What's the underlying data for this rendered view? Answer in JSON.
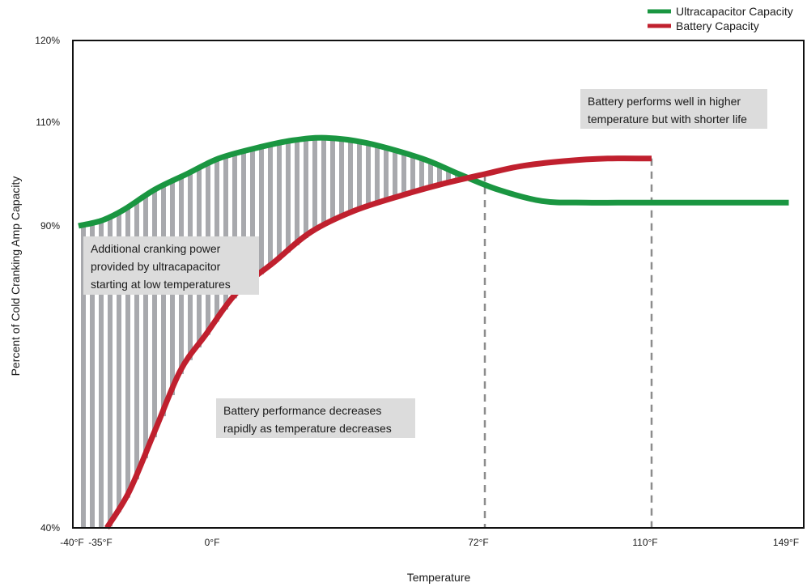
{
  "chart_data": {
    "type": "line",
    "xlabel": "Temperature",
    "ylabel": "Percent of Cold Cranking Amp Capacity",
    "xlim": [
      -40,
      149
    ],
    "ylim": [
      40,
      120
    ],
    "y_ticks": [
      {
        "value": 40,
        "label": "40%"
      },
      {
        "value": 90,
        "label": "90%"
      },
      {
        "value": 110,
        "label": "110%"
      },
      {
        "value": 120,
        "label": "120%"
      }
    ],
    "x_ticks": [
      {
        "value": -40,
        "label": "-40°F"
      },
      {
        "value": -35,
        "label": "-35°F"
      },
      {
        "value": 0,
        "label": "0°F"
      },
      {
        "value": 72,
        "label": "72°F"
      },
      {
        "value": 110,
        "label": "110°F"
      },
      {
        "value": 149,
        "label": "149°F"
      }
    ],
    "legend_position": "top-right",
    "series": [
      {
        "name": "Ultracapacitor Capacity",
        "color": "#1a9641",
        "points": [
          [
            -40,
            90
          ],
          [
            -36,
            91
          ],
          [
            -30,
            93
          ],
          [
            -20,
            97
          ],
          [
            -10,
            100
          ],
          [
            0,
            103
          ],
          [
            10,
            105
          ],
          [
            20,
            106.5
          ],
          [
            29,
            107
          ],
          [
            40,
            106
          ],
          [
            55,
            103
          ],
          [
            65,
            100
          ],
          [
            75,
            97
          ],
          [
            85,
            94.8
          ],
          [
            95,
            94.5
          ],
          [
            110,
            94.5
          ],
          [
            125,
            94.5
          ],
          [
            148,
            94.5
          ]
        ]
      },
      {
        "name": "Battery Capacity",
        "color": "#c0202e",
        "points": [
          [
            -35,
            40
          ],
          [
            -28,
            46
          ],
          [
            -20,
            56
          ],
          [
            -12,
            66
          ],
          [
            -4,
            72
          ],
          [
            5,
            79
          ],
          [
            15,
            84
          ],
          [
            25,
            89
          ],
          [
            37,
            93
          ],
          [
            50,
            96
          ],
          [
            60,
            98
          ],
          [
            72,
            100
          ],
          [
            80,
            101.5
          ],
          [
            90,
            102.5
          ],
          [
            100,
            103
          ],
          [
            110,
            103
          ]
        ]
      }
    ],
    "shaded_region": {
      "from": -40,
      "to": 72,
      "fill": "#a8a9ad"
    },
    "reference_lines": [
      72,
      110
    ],
    "annotations": [
      {
        "lines": [
          "Additional cranking power",
          "provided by ultracapacitor",
          "starting at low temperatures"
        ]
      },
      {
        "lines": [
          "Battery performance decreases",
          "rapidly as temperature decreases"
        ]
      },
      {
        "lines": [
          "Battery performs well in higher",
          "temperature but with shorter life"
        ]
      }
    ]
  }
}
